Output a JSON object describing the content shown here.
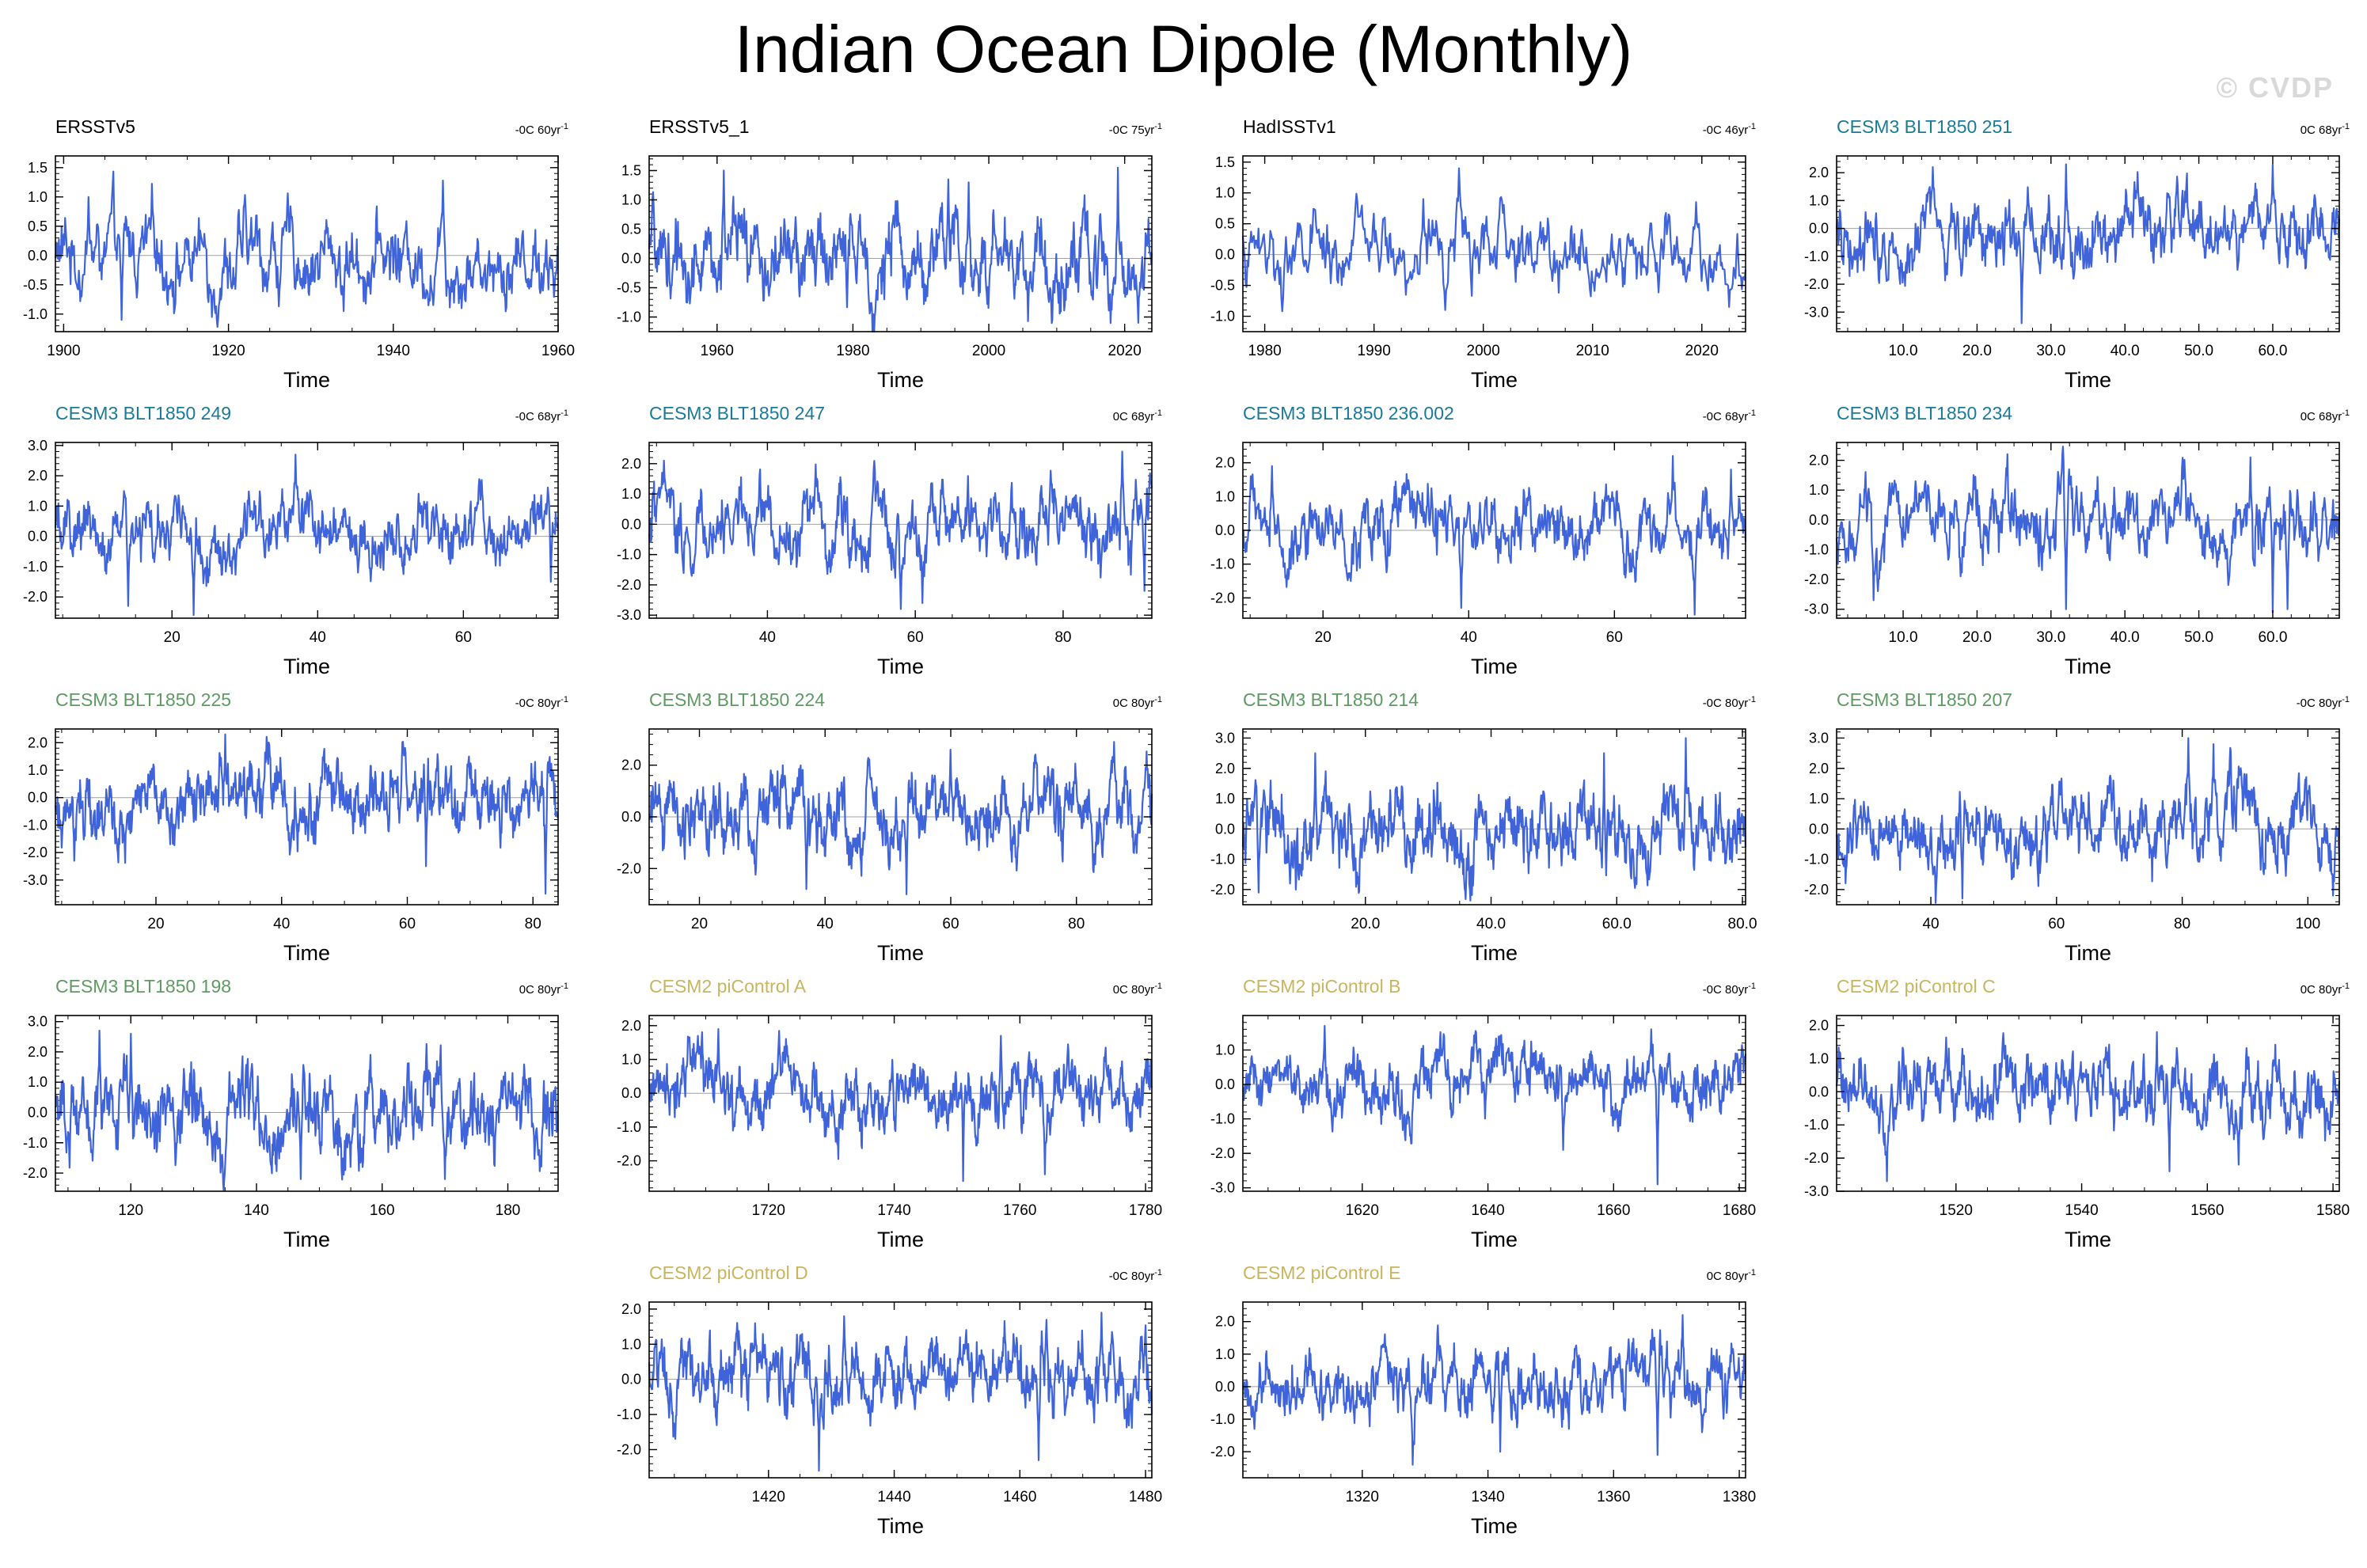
{
  "title": "Indian Ocean Dipole (Monthly)",
  "watermark": "© CVDP",
  "colors": {
    "line": "#3f63d9",
    "zero": "#a0a0a0",
    "axis": "#000000"
  },
  "chart_data": [
    {
      "type": "line",
      "title": "ERSSTv5",
      "title_color": "#000000",
      "trend": "-0C 60yr",
      "trend_exp": "-1",
      "xlabel": "Time",
      "xlim": [
        1899,
        1960
      ],
      "ylim": [
        -1.3,
        1.7
      ],
      "xticks": [
        1900,
        1920,
        1940,
        1960
      ],
      "xtick_labels": [
        "1900",
        "1920",
        "1940",
        "1960"
      ],
      "yticks": [
        -1.0,
        -0.5,
        0.0,
        0.5,
        1.0,
        1.5
      ],
      "ytick_labels": [
        "-1.0",
        "-0.5",
        "0.0",
        "0.5",
        "1.0",
        "1.5"
      ],
      "n": 730,
      "amp": 0.42,
      "extremes": [
        [
          1907,
          -1.1
        ],
        [
          1918,
          -1.05
        ],
        [
          1934,
          -0.95
        ],
        [
          1946,
          1.28
        ],
        [
          1903,
          1.0
        ]
      ]
    },
    {
      "type": "line",
      "title": "ERSSTv5_1",
      "title_color": "#000000",
      "trend": "-0C 75yr",
      "trend_exp": "-1",
      "xlabel": "Time",
      "xlim": [
        1950,
        2024
      ],
      "ylim": [
        -1.25,
        1.75
      ],
      "xticks": [
        1960,
        1980,
        2000,
        2020
      ],
      "xtick_labels": [
        "1960",
        "1980",
        "2000",
        "2020"
      ],
      "yticks": [
        -1.0,
        -0.5,
        0.0,
        0.5,
        1.0,
        1.5
      ],
      "ytick_labels": [
        "-1.0",
        "-0.5",
        "0.0",
        "0.5",
        "1.0",
        "1.5"
      ],
      "n": 890,
      "amp": 0.42,
      "extremes": [
        [
          1961,
          1.5
        ],
        [
          1994,
          1.35
        ],
        [
          1997,
          1.3
        ],
        [
          2019,
          1.55
        ],
        [
          2022,
          -1.1
        ]
      ]
    },
    {
      "type": "line",
      "title": "HadISSTv1",
      "title_color": "#000000",
      "trend": "-0C 46yr",
      "trend_exp": "-1",
      "xlabel": "Time",
      "xlim": [
        1978,
        2024
      ],
      "ylim": [
        -1.25,
        1.6
      ],
      "xticks": [
        1980,
        1990,
        2000,
        2010,
        2020
      ],
      "xtick_labels": [
        "1980",
        "1990",
        "2000",
        "2010",
        "2020"
      ],
      "yticks": [
        -1.0,
        -0.5,
        0.0,
        0.5,
        1.0,
        1.5
      ],
      "ytick_labels": [
        "-1.0",
        "-0.5",
        "0.0",
        "0.5",
        "1.0",
        "1.5"
      ],
      "n": 550,
      "amp": 0.32,
      "extremes": [
        [
          1994.5,
          0.9
        ],
        [
          1997.8,
          1.4
        ],
        [
          1996.5,
          -0.9
        ],
        [
          2019.5,
          0.85
        ],
        [
          2022.5,
          -0.85
        ]
      ]
    },
    {
      "type": "line",
      "title": "CESM3 BLT1850 251",
      "title_color": "#1a7a99",
      "trend": "0C 68yr",
      "trend_exp": "-1",
      "xlabel": "Time",
      "xlim": [
        1,
        69
      ],
      "ylim": [
        -3.7,
        2.6
      ],
      "xticks": [
        10,
        20,
        30,
        40,
        50,
        60
      ],
      "xtick_labels": [
        "10.0",
        "20.0",
        "30.0",
        "40.0",
        "50.0",
        "60.0"
      ],
      "yticks": [
        -3.0,
        -2.0,
        -1.0,
        0.0,
        1.0,
        2.0
      ],
      "ytick_labels": [
        "-3.0",
        "-2.0",
        "-1.0",
        "0.0",
        "1.0",
        "2.0"
      ],
      "n": 816,
      "amp": 0.75,
      "extremes": [
        [
          26,
          -3.4
        ],
        [
          60,
          2.3
        ],
        [
          32,
          2.3
        ],
        [
          14,
          2.2
        ]
      ]
    },
    {
      "type": "line",
      "title": "CESM3 BLT1850 249",
      "title_color": "#1a7a99",
      "trend": "-0C 68yr",
      "trend_exp": "-1",
      "xlabel": "Time",
      "xlim": [
        4,
        73
      ],
      "ylim": [
        -2.7,
        3.1
      ],
      "xticks": [
        20,
        40,
        60
      ],
      "xtick_labels": [
        "20",
        "40",
        "60"
      ],
      "yticks": [
        -2.0,
        -1.0,
        0.0,
        1.0,
        2.0,
        3.0
      ],
      "ytick_labels": [
        "-2.0",
        "-1.0",
        "0.0",
        "1.0",
        "2.0",
        "3.0"
      ],
      "n": 830,
      "amp": 0.65,
      "extremes": [
        [
          37,
          2.7
        ],
        [
          23,
          -2.6
        ],
        [
          14,
          -2.3
        ],
        [
          72,
          -1.5
        ]
      ]
    },
    {
      "type": "line",
      "title": "CESM3 BLT1850 247",
      "title_color": "#1a7a99",
      "trend": "0C 68yr",
      "trend_exp": "-1",
      "xlabel": "Time",
      "xlim": [
        24,
        92
      ],
      "ylim": [
        -3.1,
        2.7
      ],
      "xticks": [
        40,
        60,
        80
      ],
      "xtick_labels": [
        "40",
        "60",
        "80"
      ],
      "yticks": [
        -3.0,
        -2.0,
        -1.0,
        0.0,
        1.0,
        2.0
      ],
      "ytick_labels": [
        "-3.0",
        "-2.0",
        "-1.0",
        "0.0",
        "1.0",
        "2.0"
      ],
      "n": 816,
      "amp": 0.75,
      "extremes": [
        [
          58,
          -2.8
        ],
        [
          61,
          -2.6
        ],
        [
          88,
          2.4
        ],
        [
          26,
          2.1
        ],
        [
          91,
          -2.2
        ]
      ]
    },
    {
      "type": "line",
      "title": "CESM3 BLT1850 236.002",
      "title_color": "#1a7a99",
      "trend": "-0C 68yr",
      "trend_exp": "-1",
      "xlabel": "Time",
      "xlim": [
        9,
        78
      ],
      "ylim": [
        -2.6,
        2.6
      ],
      "xticks": [
        20,
        40,
        60
      ],
      "xtick_labels": [
        "20",
        "40",
        "60"
      ],
      "yticks": [
        -2.0,
        -1.0,
        0.0,
        1.0,
        2.0
      ],
      "ytick_labels": [
        "-2.0",
        "-1.0",
        "0.0",
        "1.0",
        "2.0"
      ],
      "n": 830,
      "amp": 0.6,
      "extremes": [
        [
          39,
          -2.3
        ],
        [
          71,
          -2.5
        ],
        [
          68,
          2.2
        ],
        [
          13,
          1.9
        ],
        [
          76,
          1.8
        ]
      ]
    },
    {
      "type": "line",
      "title": "CESM3 BLT1850 234",
      "title_color": "#1a7a99",
      "trend": "0C 68yr",
      "trend_exp": "-1",
      "xlabel": "Time",
      "xlim": [
        1,
        69
      ],
      "ylim": [
        -3.3,
        2.6
      ],
      "xticks": [
        10,
        20,
        30,
        40,
        50,
        60
      ],
      "xtick_labels": [
        "10.0",
        "20.0",
        "30.0",
        "40.0",
        "50.0",
        "60.0"
      ],
      "yticks": [
        -3.0,
        -2.0,
        -1.0,
        0.0,
        1.0,
        2.0
      ],
      "ytick_labels": [
        "-3.0",
        "-2.0",
        "-1.0",
        "0.0",
        "1.0",
        "2.0"
      ],
      "n": 816,
      "amp": 0.75,
      "extremes": [
        [
          60,
          -3.1
        ],
        [
          62,
          -3.0
        ],
        [
          32,
          -3.0
        ],
        [
          6,
          -2.7
        ],
        [
          57,
          2.1
        ]
      ]
    },
    {
      "type": "line",
      "title": "CESM3 BLT1850 225",
      "title_color": "#5f9a63",
      "trend": "-0C 80yr",
      "trend_exp": "-1",
      "xlabel": "Time",
      "xlim": [
        4,
        84
      ],
      "ylim": [
        -3.9,
        2.5
      ],
      "xticks": [
        20,
        40,
        60,
        80
      ],
      "xtick_labels": [
        "20",
        "40",
        "60",
        "80"
      ],
      "yticks": [
        -3.0,
        -2.0,
        -1.0,
        0.0,
        1.0,
        2.0
      ],
      "ytick_labels": [
        "-3.0",
        "-2.0",
        "-1.0",
        "0.0",
        "1.0",
        "2.0"
      ],
      "n": 960,
      "amp": 0.75,
      "extremes": [
        [
          82,
          -3.5
        ],
        [
          31,
          2.3
        ],
        [
          7,
          -2.3
        ],
        [
          63,
          -2.5
        ]
      ]
    },
    {
      "type": "line",
      "title": "CESM3 BLT1850 224",
      "title_color": "#5f9a63",
      "trend": "0C 80yr",
      "trend_exp": "-1",
      "xlabel": "Time",
      "xlim": [
        12,
        92
      ],
      "ylim": [
        -3.4,
        3.4
      ],
      "xticks": [
        20,
        40,
        60,
        80
      ],
      "xtick_labels": [
        "20",
        "40",
        "60",
        "80"
      ],
      "yticks": [
        -2.0,
        0.0,
        2.0
      ],
      "ytick_labels": [
        "-2.0",
        "0.0",
        "2.0"
      ],
      "n": 960,
      "amp": 0.9,
      "extremes": [
        [
          86,
          2.9
        ],
        [
          53,
          -3.0
        ],
        [
          37,
          -2.8
        ],
        [
          60,
          2.6
        ]
      ]
    },
    {
      "type": "line",
      "title": "CESM3 BLT1850 214",
      "title_color": "#5f9a63",
      "trend": "-0C 80yr",
      "trend_exp": "-1",
      "xlabel": "Time",
      "xlim": [
        0.5,
        80.5
      ],
      "ylim": [
        -2.5,
        3.3
      ],
      "xticks": [
        20,
        40,
        60,
        80
      ],
      "xtick_labels": [
        "20.0",
        "40.0",
        "60.0",
        "80.0"
      ],
      "yticks": [
        -2.0,
        -1.0,
        0.0,
        1.0,
        2.0,
        3.0
      ],
      "ytick_labels": [
        "-2.0",
        "-1.0",
        "0.0",
        "1.0",
        "2.0",
        "3.0"
      ],
      "n": 960,
      "amp": 0.75,
      "extremes": [
        [
          71,
          3.0
        ],
        [
          3,
          -2.1
        ],
        [
          58,
          2.5
        ],
        [
          12,
          2.5
        ]
      ]
    },
    {
      "type": "line",
      "title": "CESM3 BLT1850 207",
      "title_color": "#5f9a63",
      "trend": "-0C 80yr",
      "trend_exp": "-1",
      "xlabel": "Time",
      "xlim": [
        25,
        105
      ],
      "ylim": [
        -2.5,
        3.3
      ],
      "xticks": [
        40,
        60,
        80,
        100
      ],
      "xtick_labels": [
        "40",
        "60",
        "80",
        "100"
      ],
      "yticks": [
        -2.0,
        -1.0,
        0.0,
        1.0,
        2.0,
        3.0
      ],
      "ytick_labels": [
        "-2.0",
        "-1.0",
        "0.0",
        "1.0",
        "2.0",
        "3.0"
      ],
      "n": 960,
      "amp": 0.75,
      "extremes": [
        [
          81,
          3.0
        ],
        [
          85,
          2.8
        ],
        [
          45,
          -2.3
        ],
        [
          104,
          -2.2
        ]
      ]
    },
    {
      "type": "line",
      "title": "CESM3 BLT1850 198",
      "title_color": "#5f9a63",
      "trend": "0C 80yr",
      "trend_exp": "-1",
      "xlabel": "Time",
      "xlim": [
        108,
        188
      ],
      "ylim": [
        -2.6,
        3.2
      ],
      "xticks": [
        120,
        140,
        160,
        180
      ],
      "xtick_labels": [
        "120",
        "140",
        "160",
        "180"
      ],
      "yticks": [
        -2.0,
        -1.0,
        0.0,
        1.0,
        2.0,
        3.0
      ],
      "ytick_labels": [
        "-2.0",
        "-1.0",
        "0.0",
        "1.0",
        "2.0",
        "3.0"
      ],
      "n": 960,
      "amp": 0.8,
      "extremes": [
        [
          115,
          2.7
        ],
        [
          120,
          2.6
        ],
        [
          170,
          -2.2
        ],
        [
          147,
          -2.2
        ]
      ]
    },
    {
      "type": "line",
      "title": "CESM2 piControl A",
      "title_color": "#c8b55e",
      "trend": "0C 80yr",
      "trend_exp": "-1",
      "xlabel": "Time",
      "xlim": [
        1701,
        1781
      ],
      "ylim": [
        -2.9,
        2.3
      ],
      "xticks": [
        1720,
        1740,
        1760,
        1780
      ],
      "xtick_labels": [
        "1720",
        "1740",
        "1760",
        "1780"
      ],
      "yticks": [
        -2.0,
        -1.0,
        0.0,
        1.0,
        2.0
      ],
      "ytick_labels": [
        "-2.0",
        "-1.0",
        "0.0",
        "1.0",
        "2.0"
      ],
      "n": 960,
      "amp": 0.6,
      "extremes": [
        [
          1751,
          -2.6
        ],
        [
          1764,
          -2.4
        ],
        [
          1712,
          1.9
        ],
        [
          1757,
          1.7
        ]
      ]
    },
    {
      "type": "line",
      "title": "CESM2 piControl B",
      "title_color": "#c8b55e",
      "trend": "-0C 80yr",
      "trend_exp": "-1",
      "xlabel": "Time",
      "xlim": [
        1601,
        1681
      ],
      "ylim": [
        -3.1,
        2.0
      ],
      "xticks": [
        1620,
        1640,
        1660,
        1680
      ],
      "xtick_labels": [
        "1620",
        "1640",
        "1660",
        "1680"
      ],
      "yticks": [
        -3.0,
        -2.0,
        -1.0,
        0.0,
        1.0
      ],
      "ytick_labels": [
        "-3.0",
        "-2.0",
        "-1.0",
        "0.0",
        "1.0"
      ],
      "n": 960,
      "amp": 0.55,
      "extremes": [
        [
          1667,
          -2.9
        ],
        [
          1666,
          1.6
        ],
        [
          1614,
          1.7
        ],
        [
          1652,
          -1.9
        ]
      ]
    },
    {
      "type": "line",
      "title": "CESM2 piControl C",
      "title_color": "#c8b55e",
      "trend": "0C 80yr",
      "trend_exp": "-1",
      "xlabel": "Time",
      "xlim": [
        1501,
        1581
      ],
      "ylim": [
        -3.0,
        2.3
      ],
      "xticks": [
        1520,
        1540,
        1560,
        1580
      ],
      "xtick_labels": [
        "1520",
        "1540",
        "1560",
        "1580"
      ],
      "yticks": [
        -3.0,
        -2.0,
        -1.0,
        0.0,
        1.0,
        2.0
      ],
      "ytick_labels": [
        "-3.0",
        "-2.0",
        "-1.0",
        "0.0",
        "1.0",
        "2.0"
      ],
      "n": 960,
      "amp": 0.6,
      "extremes": [
        [
          1509,
          -2.7
        ],
        [
          1554,
          -2.4
        ],
        [
          1565,
          -2.2
        ],
        [
          1552,
          1.8
        ]
      ]
    },
    {
      "type": "line",
      "title": "CESM2 piControl D",
      "title_color": "#c8b55e",
      "trend": "-0C 80yr",
      "trend_exp": "-1",
      "xlabel": "Time",
      "xlim": [
        1401,
        1481
      ],
      "ylim": [
        -2.8,
        2.2
      ],
      "xticks": [
        1420,
        1440,
        1460,
        1480
      ],
      "xtick_labels": [
        "1420",
        "1440",
        "1460",
        "1480"
      ],
      "yticks": [
        -2.0,
        -1.0,
        0.0,
        1.0,
        2.0
      ],
      "ytick_labels": [
        "-2.0",
        "-1.0",
        "0.0",
        "1.0",
        "2.0"
      ],
      "n": 960,
      "amp": 0.6,
      "extremes": [
        [
          1428,
          -2.6
        ],
        [
          1463,
          -2.3
        ],
        [
          1473,
          1.9
        ],
        [
          1432,
          1.8
        ]
      ]
    },
    {
      "type": "line",
      "title": "CESM2 piControl E",
      "title_color": "#c8b55e",
      "trend": "0C 80yr",
      "trend_exp": "-1",
      "xlabel": "Time",
      "xlim": [
        1301,
        1381
      ],
      "ylim": [
        -2.8,
        2.6
      ],
      "xticks": [
        1320,
        1340,
        1360,
        1380
      ],
      "xtick_labels": [
        "1320",
        "1340",
        "1360",
        "1380"
      ],
      "yticks": [
        -2.0,
        -1.0,
        0.0,
        1.0,
        2.0
      ],
      "ytick_labels": [
        "-2.0",
        "-1.0",
        "0.0",
        "1.0",
        "2.0"
      ],
      "n": 960,
      "amp": 0.6,
      "extremes": [
        [
          1328,
          -2.4
        ],
        [
          1371,
          2.2
        ],
        [
          1342,
          -2.0
        ],
        [
          1367,
          -2.1
        ]
      ]
    }
  ]
}
